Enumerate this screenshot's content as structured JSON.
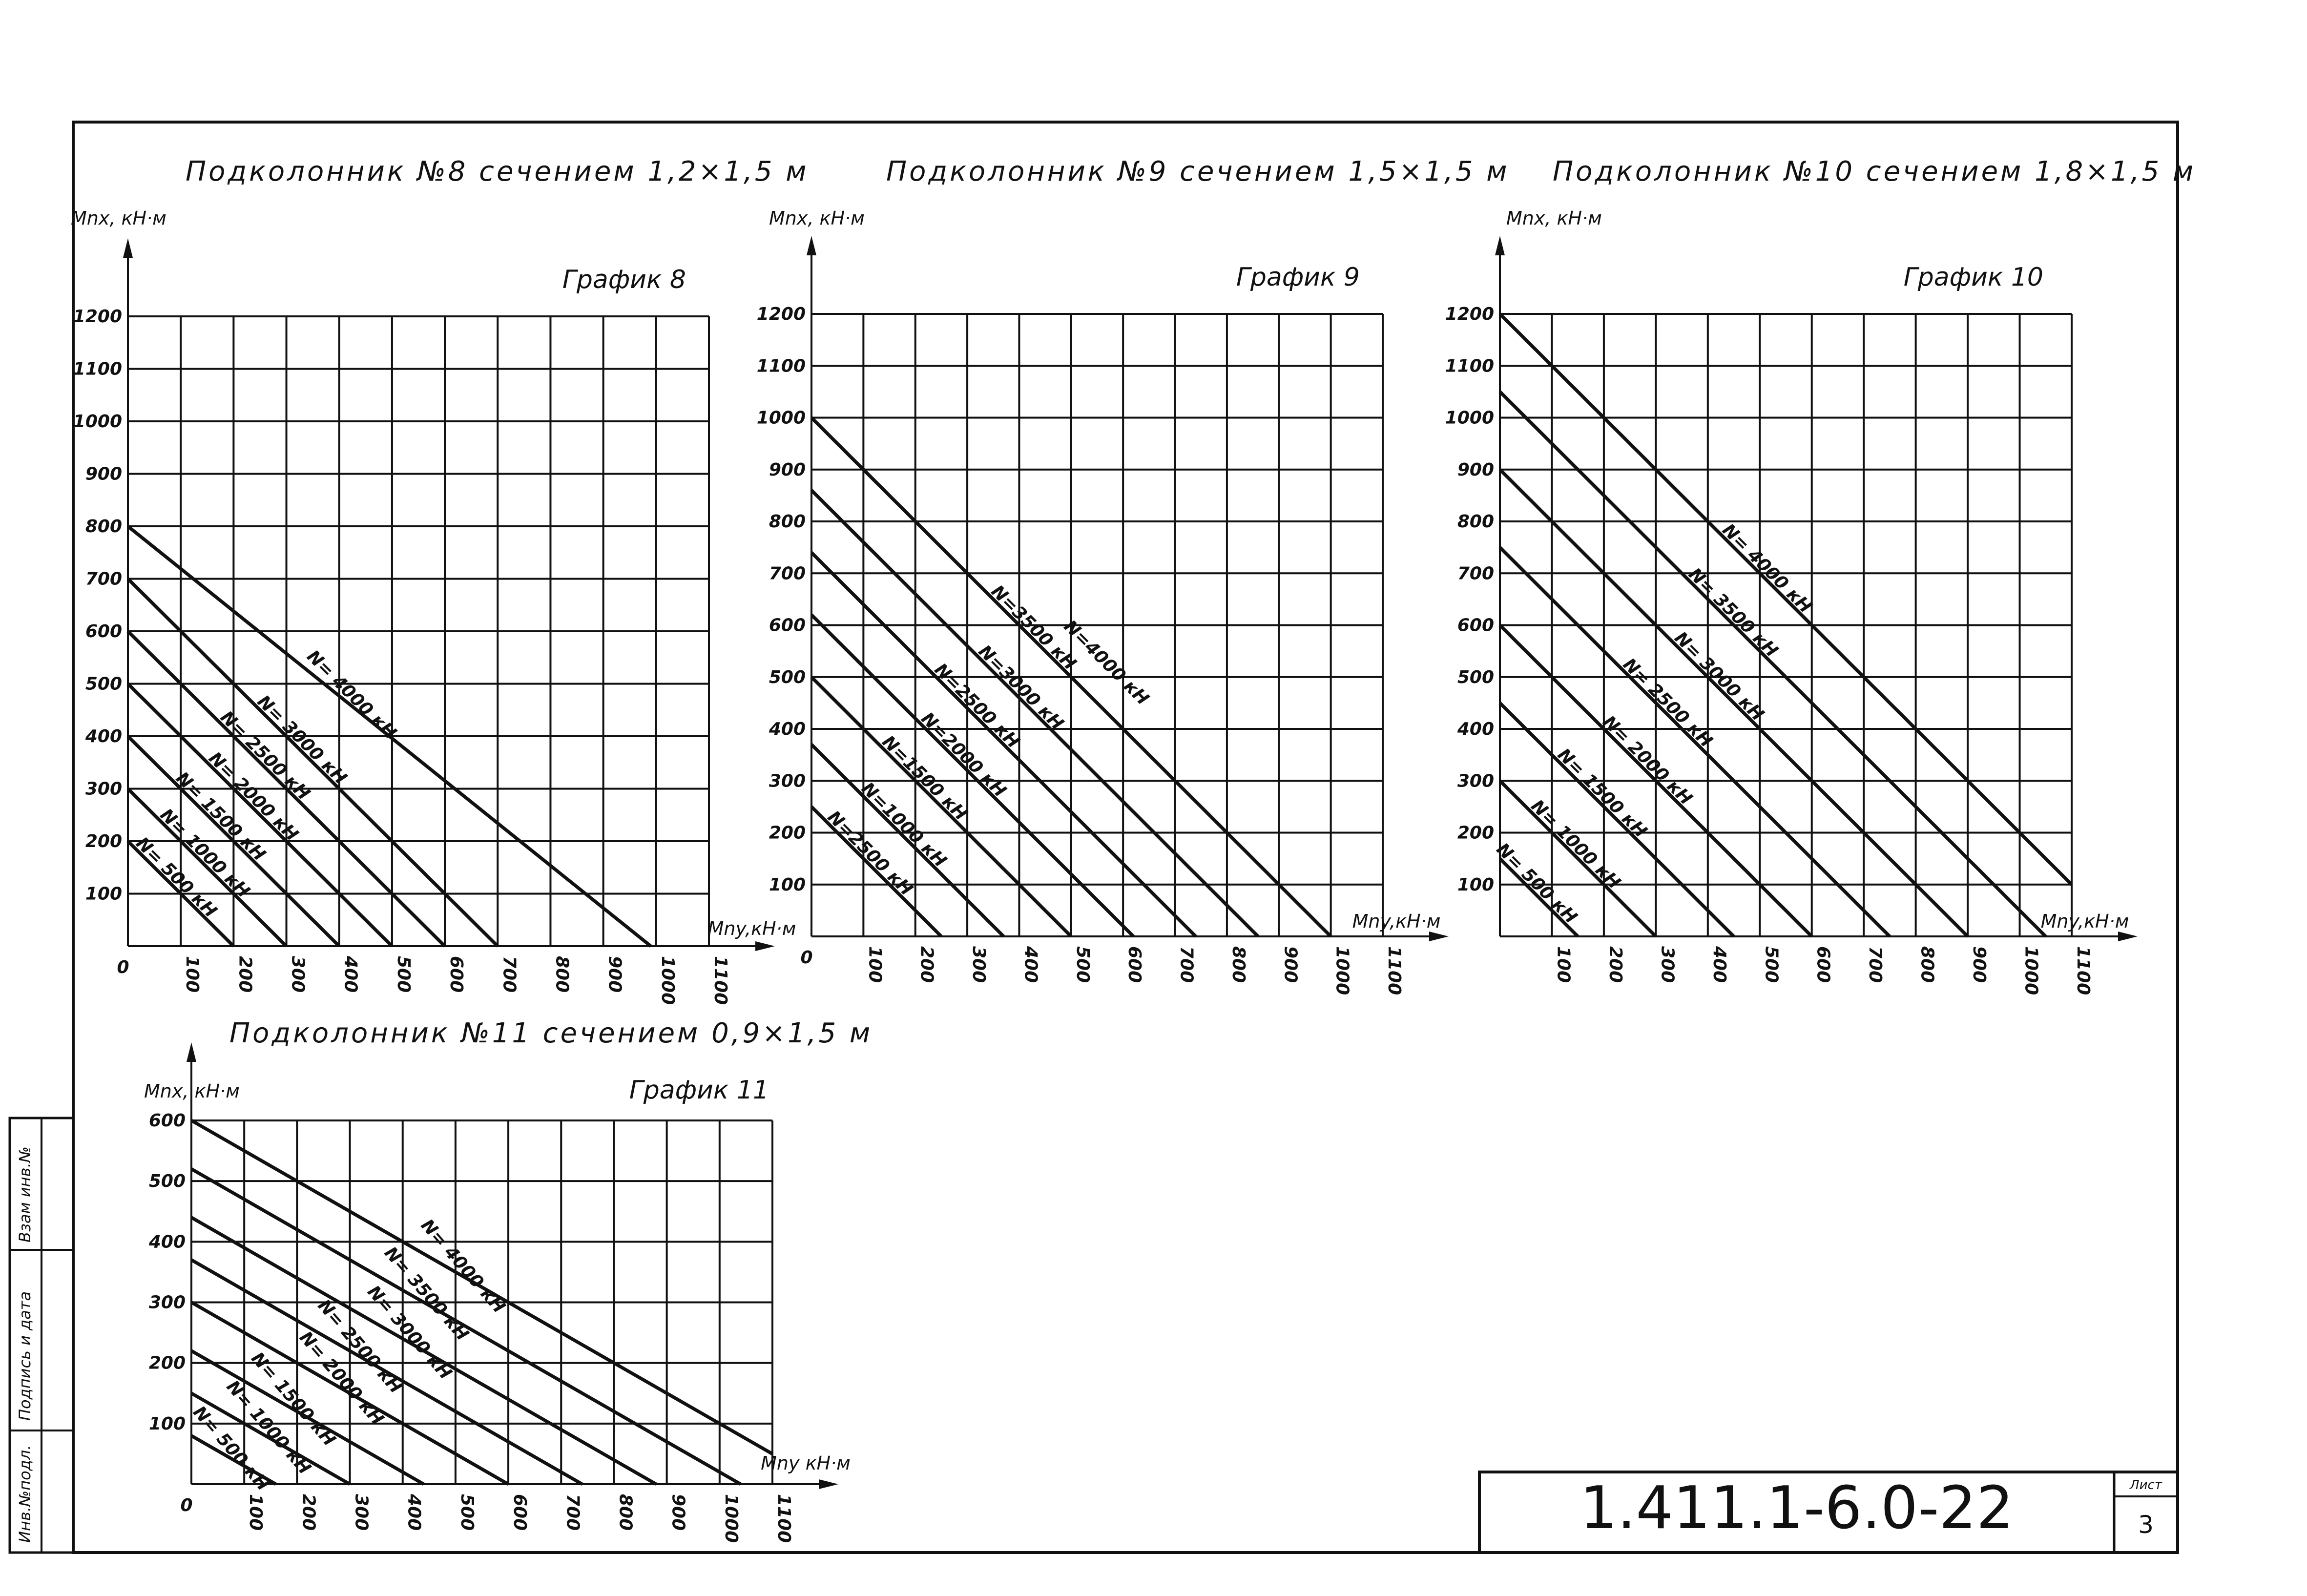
{
  "chart_data": [
    {
      "type": "line",
      "title": "Подколонник №8 сечением 1,2×1,5 м",
      "graph_label": "График 8",
      "ylabel": "Mnx, кН·м",
      "xlabel": "Mny,кН·м",
      "xlim": [
        0,
        1100
      ],
      "ylim": [
        0,
        1200
      ],
      "xticks": [
        0,
        100,
        200,
        300,
        400,
        500,
        600,
        700,
        800,
        900,
        1000,
        1100
      ],
      "yticks": [
        100,
        200,
        300,
        400,
        500,
        600,
        700,
        800,
        900,
        1000,
        1100,
        1200
      ],
      "series": [
        {
          "name": "N= 500 кН",
          "x": [
            0,
            200
          ],
          "y": [
            200,
            0
          ]
        },
        {
          "name": "N= 1000 кН",
          "x": [
            0,
            300
          ],
          "y": [
            300,
            0
          ]
        },
        {
          "name": "N= 1500 кН",
          "x": [
            0,
            400
          ],
          "y": [
            400,
            0
          ]
        },
        {
          "name": "N= 2000 кН",
          "x": [
            0,
            500
          ],
          "y": [
            500,
            0
          ]
        },
        {
          "name": "N= 2500 кН",
          "x": [
            0,
            600
          ],
          "y": [
            600,
            0
          ]
        },
        {
          "name": "N= 3000 кН",
          "x": [
            0,
            700
          ],
          "y": [
            700,
            0
          ]
        },
        {
          "name": "N= 4000 кН",
          "x": [
            0,
            990
          ],
          "y": [
            800,
            0
          ]
        }
      ]
    },
    {
      "type": "line",
      "title": "Подколонник №9 сечением 1,5×1,5 м",
      "graph_label": "График 9",
      "ylabel": "Mnx, кН·м",
      "xlabel": "Mny,кН·м",
      "xlim": [
        0,
        1100
      ],
      "ylim": [
        0,
        1200
      ],
      "xticks": [
        0,
        100,
        200,
        300,
        400,
        500,
        600,
        700,
        800,
        900,
        1000,
        1100
      ],
      "yticks": [
        100,
        200,
        300,
        400,
        500,
        600,
        700,
        800,
        900,
        1000,
        1100,
        1200
      ],
      "series": [
        {
          "name": "N=2500 кН",
          "x": [
            0,
            250
          ],
          "y": [
            250,
            0
          ]
        },
        {
          "name": "N=1000 кН",
          "x": [
            0,
            370
          ],
          "y": [
            370,
            0
          ]
        },
        {
          "name": "N=1500 кН",
          "x": [
            0,
            500
          ],
          "y": [
            500,
            0
          ]
        },
        {
          "name": "N=2000 кН",
          "x": [
            0,
            620
          ],
          "y": [
            620,
            0
          ]
        },
        {
          "name": "N=2500 кН",
          "x": [
            0,
            740
          ],
          "y": [
            740,
            0
          ]
        },
        {
          "name": "N=3000 кН",
          "x": [
            0,
            860
          ],
          "y": [
            860,
            0
          ]
        },
        {
          "name": "N=3500 кН",
          "x": [
            0,
            1000
          ],
          "y": [
            1000,
            0
          ]
        }
      ],
      "annotations": [
        "N=4000 кН"
      ]
    },
    {
      "type": "line",
      "title": "Подколонник №10 сечением 1,8×1,5 м",
      "graph_label": "График 10",
      "ylabel": "Mnx, кН·м",
      "xlabel": "Mny,кН·м",
      "xlim": [
        0,
        1100
      ],
      "ylim": [
        0,
        1200
      ],
      "xticks": [
        100,
        200,
        300,
        400,
        500,
        600,
        700,
        800,
        900,
        1000,
        1100
      ],
      "yticks": [
        100,
        200,
        300,
        400,
        500,
        600,
        700,
        800,
        900,
        1000,
        1100,
        1200
      ],
      "series": [
        {
          "name": "N= 500 кН",
          "x": [
            0,
            150
          ],
          "y": [
            150,
            0
          ]
        },
        {
          "name": "N= 1000 кН",
          "x": [
            0,
            300
          ],
          "y": [
            300,
            0
          ]
        },
        {
          "name": "N= 1500 кН",
          "x": [
            0,
            450
          ],
          "y": [
            450,
            0
          ]
        },
        {
          "name": "N= 2000 кН",
          "x": [
            0,
            600
          ],
          "y": [
            600,
            0
          ]
        },
        {
          "name": "N= 2500 кН",
          "x": [
            0,
            750
          ],
          "y": [
            750,
            0
          ]
        },
        {
          "name": "N= 3000 кН",
          "x": [
            0,
            900
          ],
          "y": [
            900,
            0
          ]
        },
        {
          "name": "N= 3500 кН",
          "x": [
            0,
            1050
          ],
          "y": [
            1050,
            0
          ]
        },
        {
          "name": "N= 4000 кН",
          "x": [
            0,
            1200
          ],
          "y": [
            1200,
            0
          ]
        }
      ]
    },
    {
      "type": "line",
      "title": "Подколонник №11 сечением 0,9×1,5 м",
      "graph_label": "График 11",
      "ylabel": "Mnx, кН·м",
      "xlabel": "Mny кН·м",
      "xlim": [
        0,
        1100
      ],
      "ylim": [
        0,
        600
      ],
      "xticks": [
        0,
        100,
        200,
        300,
        400,
        500,
        600,
        700,
        800,
        900,
        1000,
        1100
      ],
      "yticks": [
        100,
        200,
        300,
        400,
        500,
        600
      ],
      "series": [
        {
          "name": "N= 500 кН",
          "x": [
            0,
            160
          ],
          "y": [
            80,
            0
          ]
        },
        {
          "name": "N= 1000 кН",
          "x": [
            0,
            300
          ],
          "y": [
            150,
            0
          ]
        },
        {
          "name": "N= 1500 кН",
          "x": [
            0,
            440
          ],
          "y": [
            220,
            0
          ]
        },
        {
          "name": "N= 2000 кН",
          "x": [
            0,
            600
          ],
          "y": [
            300,
            0
          ]
        },
        {
          "name": "N= 2500 кН",
          "x": [
            0,
            740
          ],
          "y": [
            370,
            0
          ]
        },
        {
          "name": "N= 3000 кН",
          "x": [
            0,
            880
          ],
          "y": [
            440,
            0
          ]
        },
        {
          "name": "N= 3500 кН",
          "x": [
            0,
            1040
          ],
          "y": [
            520,
            0
          ]
        },
        {
          "name": "N= 4000 кН",
          "x": [
            0,
            1200
          ],
          "y": [
            600,
            0
          ]
        }
      ]
    }
  ],
  "stamp": {
    "code": "1.411.1-6.0-22",
    "sheet_label": "Лист",
    "sheet_number": "3"
  },
  "side_strip": [
    "Инв.№подл.",
    "Подпись и дата",
    "Взам инв.№"
  ]
}
